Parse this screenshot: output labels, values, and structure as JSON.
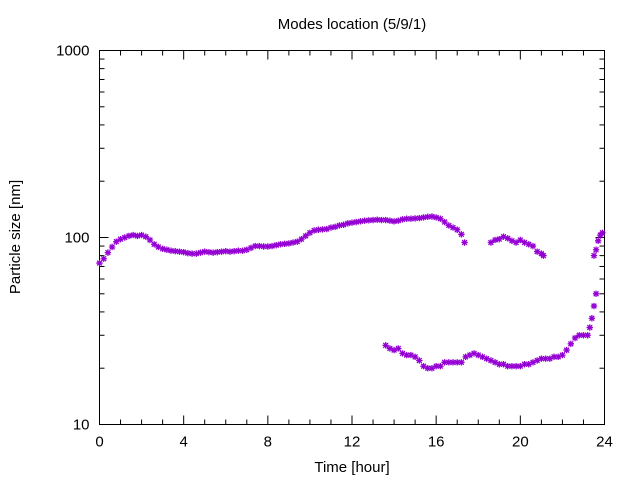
{
  "chart_data": {
    "type": "scatter",
    "title": "Modes location (5/9/1)",
    "xlabel": "Time [hour]",
    "ylabel": "Particle size [nm]",
    "xlim": [
      0,
      24
    ],
    "ylim": [
      10,
      1000
    ],
    "yscale": "log",
    "grid": false,
    "x_ticks": [
      "0",
      "4",
      "8",
      "12",
      "16",
      "20",
      "24"
    ],
    "y_ticks": [
      "10",
      "100",
      "1000"
    ],
    "marker_color": "#9400d3",
    "series": [
      {
        "points": [
          [
            0.0,
            73
          ],
          [
            0.2,
            77
          ],
          [
            0.4,
            83
          ],
          [
            0.6,
            89
          ],
          [
            0.8,
            95
          ],
          [
            1.0,
            98
          ],
          [
            1.2,
            100
          ],
          [
            1.4,
            102
          ],
          [
            1.6,
            103
          ],
          [
            1.8,
            102
          ],
          [
            2.0,
            103
          ],
          [
            2.2,
            101
          ],
          [
            2.4,
            97
          ],
          [
            2.6,
            92
          ],
          [
            2.8,
            89
          ],
          [
            3.0,
            87
          ],
          [
            3.2,
            86
          ],
          [
            3.4,
            85
          ],
          [
            3.6,
            84.5
          ],
          [
            3.8,
            84
          ],
          [
            4.0,
            83.5
          ],
          [
            4.2,
            82.5
          ],
          [
            4.4,
            82
          ],
          [
            4.6,
            82
          ],
          [
            4.8,
            83
          ],
          [
            5.0,
            84
          ],
          [
            5.2,
            83.5
          ],
          [
            5.4,
            83
          ],
          [
            5.6,
            83.5
          ],
          [
            5.8,
            84
          ],
          [
            6.0,
            84.5
          ],
          [
            6.2,
            84
          ],
          [
            6.4,
            84.5
          ],
          [
            6.6,
            85
          ],
          [
            6.8,
            85
          ],
          [
            7.0,
            86
          ],
          [
            7.2,
            88
          ],
          [
            7.4,
            90
          ],
          [
            7.6,
            90
          ],
          [
            7.8,
            89.5
          ],
          [
            8.0,
            89.5
          ],
          [
            8.2,
            90
          ],
          [
            8.4,
            91
          ],
          [
            8.6,
            92
          ],
          [
            8.8,
            92.5
          ],
          [
            9.0,
            93
          ],
          [
            9.2,
            94
          ],
          [
            9.4,
            95
          ],
          [
            9.6,
            98
          ],
          [
            9.8,
            102
          ],
          [
            10.0,
            106
          ],
          [
            10.2,
            109
          ],
          [
            10.4,
            110
          ],
          [
            10.6,
            110.5
          ],
          [
            10.8,
            111
          ],
          [
            11.0,
            113
          ],
          [
            11.2,
            114
          ],
          [
            11.4,
            116
          ],
          [
            11.6,
            117
          ],
          [
            11.8,
            119
          ],
          [
            12.0,
            120
          ],
          [
            12.2,
            121
          ],
          [
            12.4,
            122
          ],
          [
            12.6,
            123
          ],
          [
            12.8,
            123.5
          ],
          [
            13.0,
            124
          ],
          [
            13.2,
            124.5
          ],
          [
            13.4,
            124
          ],
          [
            13.6,
            124
          ],
          [
            13.8,
            123
          ],
          [
            14.0,
            122
          ],
          [
            14.2,
            123
          ],
          [
            14.4,
            125
          ],
          [
            14.6,
            126
          ],
          [
            14.8,
            126
          ],
          [
            15.0,
            126.5
          ],
          [
            15.2,
            127
          ],
          [
            15.4,
            128
          ],
          [
            15.6,
            129
          ],
          [
            15.8,
            129.5
          ],
          [
            16.0,
            128
          ],
          [
            16.2,
            126
          ],
          [
            16.4,
            121
          ],
          [
            16.6,
            116
          ],
          [
            16.8,
            113
          ],
          [
            17.0,
            110
          ],
          [
            17.2,
            104
          ],
          [
            17.35,
            94
          ],
          [
            18.6,
            94
          ],
          [
            18.8,
            97
          ],
          [
            19.0,
            98
          ],
          [
            19.2,
            101
          ],
          [
            19.4,
            99
          ],
          [
            19.6,
            96
          ],
          [
            19.8,
            94
          ],
          [
            20.0,
            97
          ],
          [
            20.2,
            94
          ],
          [
            20.4,
            92
          ],
          [
            20.6,
            90
          ],
          [
            20.8,
            84
          ],
          [
            21.0,
            82
          ],
          [
            21.1,
            80
          ],
          [
            23.5,
            80
          ],
          [
            23.6,
            86
          ],
          [
            23.7,
            96
          ],
          [
            23.8,
            103
          ],
          [
            23.9,
            106
          ]
        ]
      },
      {
        "points": [
          [
            13.6,
            26.5
          ],
          [
            13.8,
            25.5
          ],
          [
            14.0,
            25
          ],
          [
            14.2,
            25.5
          ],
          [
            14.4,
            24
          ],
          [
            14.6,
            23.5
          ],
          [
            14.8,
            23.5
          ],
          [
            15.0,
            23
          ],
          [
            15.2,
            22
          ],
          [
            15.4,
            20.5
          ],
          [
            15.6,
            20
          ],
          [
            15.8,
            20
          ],
          [
            16.0,
            20.5
          ],
          [
            16.2,
            20.5
          ],
          [
            16.4,
            21.5
          ],
          [
            16.6,
            21.5
          ],
          [
            16.8,
            21.5
          ],
          [
            17.0,
            21.5
          ],
          [
            17.2,
            21.5
          ],
          [
            17.4,
            23
          ],
          [
            17.6,
            23.5
          ],
          [
            17.8,
            24
          ],
          [
            18.0,
            23.5
          ],
          [
            18.2,
            23
          ],
          [
            18.4,
            22.5
          ],
          [
            18.6,
            22
          ],
          [
            18.8,
            21.5
          ],
          [
            19.0,
            21
          ],
          [
            19.2,
            21
          ],
          [
            19.4,
            20.5
          ],
          [
            19.6,
            20.5
          ],
          [
            19.8,
            20.5
          ],
          [
            20.0,
            20.5
          ],
          [
            20.2,
            21
          ],
          [
            20.4,
            21
          ],
          [
            20.6,
            21.5
          ],
          [
            20.8,
            22
          ],
          [
            21.0,
            22.5
          ],
          [
            21.2,
            22.5
          ],
          [
            21.4,
            22.5
          ],
          [
            21.6,
            23
          ],
          [
            21.8,
            23
          ],
          [
            22.0,
            23.5
          ],
          [
            22.2,
            25
          ],
          [
            22.4,
            27
          ],
          [
            22.6,
            29
          ],
          [
            22.8,
            30
          ],
          [
            23.0,
            30
          ],
          [
            23.2,
            30
          ],
          [
            23.3,
            33
          ],
          [
            23.4,
            37
          ],
          [
            23.5,
            43
          ],
          [
            23.6,
            50
          ]
        ]
      }
    ]
  }
}
